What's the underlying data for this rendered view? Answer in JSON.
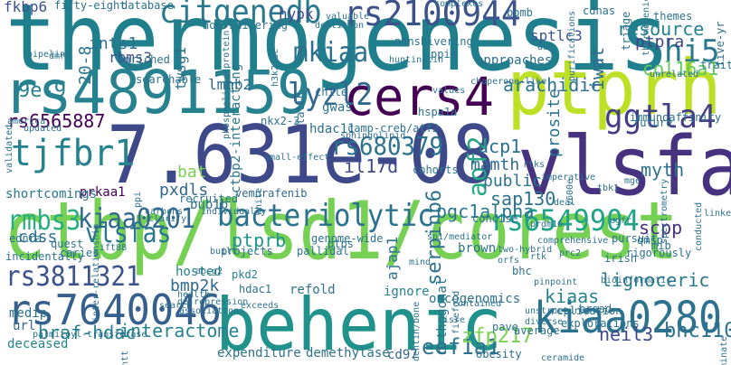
{
  "words": [
    {
      "text": "thermogenesis",
      "color": "#1f7f8c"
    },
    {
      "text": "ctbp/lsd1/corest",
      "color": "#75d054"
    },
    {
      "text": "7.631e-08",
      "color": "#3e4989"
    },
    {
      "text": "rs4891159",
      "color": "#26828e"
    },
    {
      "text": "ptprh",
      "color": "#bddf26"
    },
    {
      "text": "vlsfa",
      "color": "#46327e"
    },
    {
      "text": "behenic",
      "color": "#21918c"
    },
    {
      "text": "rs7640046",
      "color": "#35608d"
    },
    {
      "text": "kiaa0280",
      "color": "#2c728e"
    },
    {
      "text": "cers4",
      "color": "#440154"
    },
    {
      "text": "tjfbr1",
      "color": "#26828e"
    },
    {
      "text": "rs2100944",
      "color": "#3b528b"
    },
    {
      "text": "citgenedb",
      "color": "#2a788e"
    },
    {
      "text": "bacteriolytic",
      "color": "#2c728e"
    },
    {
      "text": "kiaa0201",
      "color": "#31688e"
    },
    {
      "text": "rs6549904",
      "color": "#20a386"
    },
    {
      "text": "rs3811321",
      "color": "#3b528b"
    },
    {
      "text": "ggtla4",
      "color": "#433e85"
    },
    {
      "text": "lyzl2",
      "color": "#31688e"
    },
    {
      "text": "rs680379",
      "color": "#2c728e"
    },
    {
      "text": "rmbs3",
      "color": "#29af7f"
    },
    {
      "text": "mkiaa",
      "color": "#2c728e"
    },
    {
      "text": "aof2",
      "color": "#22a884"
    },
    {
      "text": "hi5",
      "color": "#2a788e"
    },
    {
      "text": "vlsfas",
      "color": "#2a788e"
    },
    {
      "text": "fkbp6",
      "color": "#3b528b"
    },
    {
      "text": "rs6565887",
      "color": "#440154"
    },
    {
      "text": "interactome",
      "color": "#26828e"
    },
    {
      "text": "braf-hdac",
      "color": "#277f8e"
    },
    {
      "text": "serpinb6",
      "color": "#2c728e"
    },
    {
      "text": "bhc110",
      "color": "#2c728e"
    },
    {
      "text": "eef1a1",
      "color": "#2c728e"
    },
    {
      "text": "kiaas",
      "color": "#26828e"
    },
    {
      "text": "lignoceric",
      "color": "#2a788e"
    },
    {
      "text": "neil3",
      "color": "#3e4989"
    },
    {
      "text": "zfp217",
      "color": "#7ad151"
    },
    {
      "text": "ptprb",
      "color": "#1f968b"
    },
    {
      "text": "pgc1alpha",
      "color": "#2a788e"
    },
    {
      "text": "il17d",
      "color": "#3e4989"
    },
    {
      "text": "ucp1",
      "color": "#2c728e"
    },
    {
      "text": "mamth",
      "color": "#31688e"
    },
    {
      "text": "myth",
      "color": "#2c728e"
    },
    {
      "text": "scpp",
      "color": "#46327e"
    },
    {
      "text": "sap130",
      "color": "#2c728e"
    },
    {
      "text": "public",
      "color": "#2c728e"
    },
    {
      "text": "arachidic",
      "color": "#2c728e"
    },
    {
      "text": "resource",
      "color": "#26828e"
    },
    {
      "text": "col16a1",
      "color": "#5ec962"
    },
    {
      "text": "ptpra",
      "color": "#414487"
    },
    {
      "text": "sptlc3",
      "color": "#3b528b"
    },
    {
      "text": "iwat",
      "color": "#31688e"
    },
    {
      "text": "prosite",
      "color": "#2c728e"
    },
    {
      "text": "approaches",
      "color": "#2c728e"
    },
    {
      "text": "hypk",
      "color": "#3e4989"
    },
    {
      "text": "ints1",
      "color": "#2c728e"
    },
    {
      "text": "rbms3",
      "color": "#3b528b"
    },
    {
      "text": "9e-9",
      "color": "#26828e"
    },
    {
      "text": "20-8",
      "color": "#2a788e"
    },
    {
      "text": "lmnb2",
      "color": "#31688e"
    },
    {
      "text": "twsg1",
      "color": "#2c728e"
    },
    {
      "text": "bat",
      "color": "#75d054"
    },
    {
      "text": "bub1b",
      "color": "#2c728e"
    },
    {
      "text": "pxdls",
      "color": "#31688e"
    },
    {
      "text": "prkaa1",
      "color": "#440154"
    },
    {
      "text": "shortcomings",
      "color": "#2a788e"
    },
    {
      "text": "cdss",
      "color": "#2c728e"
    },
    {
      "text": "bmp2k",
      "color": "#31688e"
    },
    {
      "text": "hdac1",
      "color": "#2c728e"
    },
    {
      "text": "refold",
      "color": "#2c728e"
    },
    {
      "text": "ignore",
      "color": "#26828e"
    },
    {
      "text": "oncogenomics",
      "color": "#2c728e"
    },
    {
      "text": "expenditure",
      "color": "#2c728e"
    },
    {
      "text": "demethylase",
      "color": "#2c728e"
    },
    {
      "text": "cd97",
      "color": "#31688e"
    },
    {
      "text": "ajap1",
      "color": "#2c728e"
    },
    {
      "text": "brown",
      "color": "#2c728e"
    },
    {
      "text": "pkd2",
      "color": "#26828e"
    },
    {
      "text": "hosted",
      "color": "#26828e"
    },
    {
      "text": "recruited",
      "color": "#2c728e"
    },
    {
      "text": "vemurafenib",
      "color": "#31688e"
    },
    {
      "text": "hdac11",
      "color": "#2c728e"
    },
    {
      "text": "ctbp2-interacting",
      "color": "#2a788e"
    },
    {
      "text": "latin",
      "color": "#2c728e"
    },
    {
      "text": "chile",
      "color": "#2c728e"
    },
    {
      "text": "gwas",
      "color": "#2c728e"
    },
    {
      "text": "medip",
      "color": "#2c728e"
    },
    {
      "text": "deceased",
      "color": "#26828e"
    },
    {
      "text": "url",
      "color": "#31688e"
    },
    {
      "text": "immunoaffinity",
      "color": "#2c728e"
    },
    {
      "text": "future",
      "color": "#2c728e"
    },
    {
      "text": "cohorts",
      "color": "#2c728e"
    },
    {
      "text": "hspa1a",
      "color": "#2c728e"
    },
    {
      "text": "searchable",
      "color": "#2c728e"
    },
    {
      "text": "non-shivering",
      "color": "#2c728e"
    },
    {
      "text": "nonshivering",
      "color": "#2c728e"
    },
    {
      "text": "fifty-eight",
      "color": "#2c728e"
    },
    {
      "text": "database",
      "color": "#2c728e"
    },
    {
      "text": "enriched",
      "color": "#2c728e"
    },
    {
      "text": "ppis",
      "color": "#2c728e"
    },
    {
      "text": "genome-wide",
      "color": "#2c728e"
    },
    {
      "text": "concise",
      "color": "#2c728e"
    },
    {
      "text": "pursuit",
      "color": "#2c728e"
    },
    {
      "text": "irish",
      "color": "#2c728e"
    },
    {
      "text": "qmsp",
      "color": "#2c728e"
    },
    {
      "text": "ednra",
      "color": "#2c728e"
    },
    {
      "text": "quest",
      "color": "#2c728e"
    },
    {
      "text": "pallidal",
      "color": "#2c728e"
    },
    {
      "text": "caries",
      "color": "#2c728e"
    },
    {
      "text": "incidentally",
      "color": "#2c728e"
    },
    {
      "text": "projects",
      "color": "#2c728e"
    },
    {
      "text": "ptps",
      "color": "#2c728e"
    },
    {
      "text": "bhc",
      "color": "#2c728e"
    },
    {
      "text": "replication",
      "color": "#2c728e"
    },
    {
      "text": "obesity",
      "color": "#2c728e"
    },
    {
      "text": "average",
      "color": "#2c728e"
    },
    {
      "text": "orthogonal",
      "color": "#2c728e"
    },
    {
      "text": "mib",
      "color": "#2c728e"
    },
    {
      "text": "pave",
      "color": "#2c728e"
    },
    {
      "text": "rigorously",
      "color": "#2c728e"
    },
    {
      "text": "broad",
      "color": "#2c728e"
    },
    {
      "text": "explorations",
      "color": "#2c728e"
    },
    {
      "text": "trait",
      "color": "#2c728e"
    },
    {
      "text": "themes",
      "color": "#2c728e"
    },
    {
      "text": "five-yr",
      "color": "#2c728e"
    },
    {
      "text": "cdnas",
      "color": "#2c728e"
    },
    {
      "text": "triage",
      "color": "#2c728e"
    },
    {
      "text": "bomb",
      "color": "#2c728e"
    },
    {
      "text": "complexes",
      "color": "#2c728e"
    },
    {
      "text": "huntingtin",
      "color": "#2c728e"
    },
    {
      "text": "camp-creb/atf2",
      "color": "#2c728e"
    },
    {
      "text": "sphingolipid",
      "color": "#2c728e"
    },
    {
      "text": "nkx2-3",
      "color": "#2c728e"
    },
    {
      "text": "pipeline",
      "color": "#2c728e"
    },
    {
      "text": "validated",
      "color": "#2c728e"
    },
    {
      "text": "updated",
      "color": "#2c728e"
    },
    {
      "text": "america",
      "color": "#2c728e"
    },
    {
      "text": "carbons",
      "color": "#2c728e"
    },
    {
      "text": "individually",
      "color": "#2c728e"
    },
    {
      "text": "clarify",
      "color": "#2c728e"
    },
    {
      "text": "built",
      "color": "#2c728e"
    },
    {
      "text": "abcg2",
      "color": "#2c728e"
    },
    {
      "text": "ift88",
      "color": "#2c728e"
    },
    {
      "text": "de-repression",
      "color": "#2c728e"
    },
    {
      "text": "health",
      "color": "#2c728e"
    },
    {
      "text": "exceeds",
      "color": "#2c728e"
    },
    {
      "text": "search",
      "color": "#2c728e"
    },
    {
      "text": "associations",
      "color": "#2c728e"
    },
    {
      "text": "mind",
      "color": "#2c728e"
    },
    {
      "text": "pinpoint",
      "color": "#2c728e"
    },
    {
      "text": "unstructured",
      "color": "#2c728e"
    },
    {
      "text": "contained",
      "color": "#2c728e"
    },
    {
      "text": "isre",
      "color": "#2c728e"
    },
    {
      "text": "diverse",
      "color": "#2c728e"
    },
    {
      "text": "ceramide",
      "color": "#2c728e"
    },
    {
      "text": "fivefold",
      "color": "#2c728e"
    },
    {
      "text": "comprehensive",
      "color": "#2c728e"
    },
    {
      "text": "egfr",
      "color": "#2c728e"
    },
    {
      "text": "prdm16",
      "color": "#2c728e"
    },
    {
      "text": "tbk1",
      "color": "#2c728e"
    },
    {
      "text": "deal",
      "color": "#2c728e"
    },
    {
      "text": "imperative",
      "color": "#2c728e"
    },
    {
      "text": "mge",
      "color": "#2c728e"
    },
    {
      "text": "spectrometry",
      "color": "#2c728e"
    },
    {
      "text": "conducted",
      "color": "#2c728e"
    },
    {
      "text": "linkers",
      "color": "#2c728e"
    },
    {
      "text": "h3k27ac",
      "color": "#2c728e"
    },
    {
      "text": "valuable",
      "color": "#2c728e"
    },
    {
      "text": "dentition",
      "color": "#2c728e"
    },
    {
      "text": "purifications",
      "color": "#2c728e"
    },
    {
      "text": "rtks",
      "color": "#2c728e"
    },
    {
      "text": "v600e",
      "color": "#2c728e"
    },
    {
      "text": "chaperone-like",
      "color": "#2c728e"
    },
    {
      "text": "values",
      "color": "#2c728e"
    },
    {
      "text": "auc",
      "color": "#2c728e"
    },
    {
      "text": "thermogenic",
      "color": "#2c728e"
    },
    {
      "text": "unrelated",
      "color": "#2c728e"
    },
    {
      "text": "nominate",
      "color": "#2c728e"
    },
    {
      "text": "palmitoyl-transferase",
      "color": "#2c728e"
    },
    {
      "text": "htt",
      "color": "#2c728e"
    },
    {
      "text": "inter-relationship",
      "color": "#2c728e"
    },
    {
      "text": "dentin/bone",
      "color": "#2c728e"
    },
    {
      "text": "sp1/mediator",
      "color": "#2c728e"
    },
    {
      "text": "two-hybrid",
      "color": "#2c728e"
    },
    {
      "text": "orfs",
      "color": "#2c728e"
    },
    {
      "text": "rtk",
      "color": "#2c728e"
    },
    {
      "text": "prc2",
      "color": "#2c728e"
    },
    {
      "text": "bioinformatic",
      "color": "#2c728e"
    },
    {
      "text": "dmrs",
      "color": "#2c728e"
    },
    {
      "text": "mss",
      "color": "#2c728e"
    },
    {
      "text": "ppi",
      "color": "#2c728e"
    },
    {
      "text": "white",
      "color": "#2c728e"
    },
    {
      "text": "small-effect",
      "color": "#2c728e"
    },
    {
      "text": "phospholipid/protein",
      "color": "#2c728e"
    },
    {
      "text": "demethylate",
      "color": "#2c728e"
    }
  ]
}
